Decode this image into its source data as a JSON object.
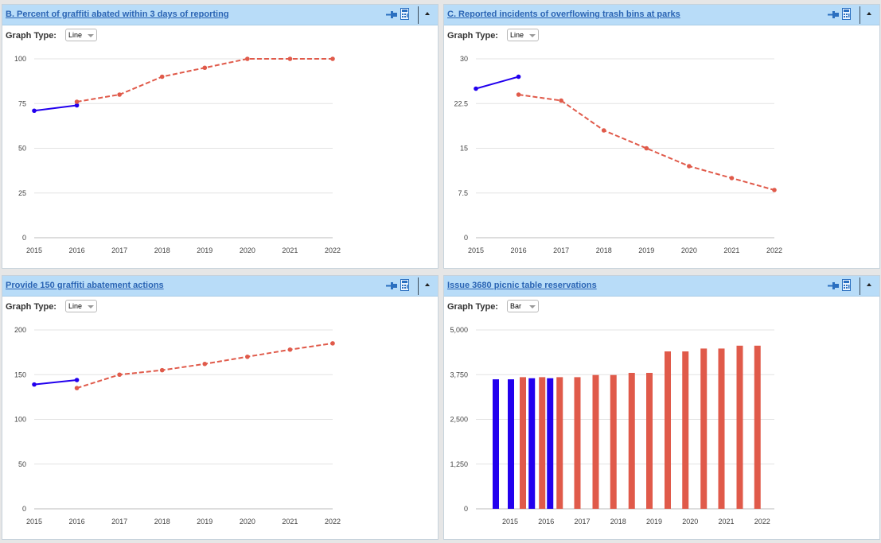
{
  "panels": [
    {
      "title": "B. Percent of graffiti abated within 3 days of reporting",
      "graph_type_label": "Graph Type:",
      "graph_type": "Line"
    },
    {
      "title": "C. Reported incidents of overflowing trash bins at parks",
      "graph_type_label": "Graph Type:",
      "graph_type": "Line"
    },
    {
      "title": "Provide 150 graffiti abatement actions",
      "graph_type_label": "Graph Type:",
      "graph_type": "Line"
    },
    {
      "title": "Issue 3680 picnic table reservations",
      "graph_type_label": "Graph Type:",
      "graph_type": "Bar"
    }
  ],
  "icons": [
    "pin-icon",
    "calculator-icon",
    "collapse-icon"
  ],
  "colors": {
    "actual": "#2200ee",
    "target": "#e05a4a",
    "header": "#b8dcf8",
    "title": "#2a64b4"
  },
  "chart_data": [
    {
      "type": "line",
      "title": "B. Percent of graffiti abated within 3 days of reporting",
      "x": [
        "2015",
        "2016",
        "2017",
        "2018",
        "2019",
        "2020",
        "2021",
        "2022"
      ],
      "ylim": [
        0,
        100
      ],
      "yticks": [
        "0",
        "25",
        "50",
        "75",
        "100"
      ],
      "series": [
        {
          "style": "solid",
          "color": "#2200ee",
          "points": [
            [
              "2015",
              71
            ],
            [
              "2016",
              74
            ]
          ]
        },
        {
          "style": "dashed",
          "color": "#e05a4a",
          "points": [
            [
              "2016",
              76
            ],
            [
              "2017",
              80
            ],
            [
              "2018",
              90
            ],
            [
              "2019",
              95
            ],
            [
              "2020",
              100
            ],
            [
              "2021",
              100
            ],
            [
              "2022",
              100
            ]
          ]
        }
      ],
      "grid": true
    },
    {
      "type": "line",
      "title": "C. Reported incidents of overflowing trash bins at parks",
      "x": [
        "2015",
        "2016",
        "2017",
        "2018",
        "2019",
        "2020",
        "2021",
        "2022"
      ],
      "ylim": [
        0,
        30
      ],
      "yticks": [
        "0",
        "7.5",
        "15",
        "22.5",
        "30"
      ],
      "series": [
        {
          "style": "solid",
          "color": "#2200ee",
          "points": [
            [
              "2015",
              25
            ],
            [
              "2016",
              27
            ]
          ]
        },
        {
          "style": "dashed",
          "color": "#e05a4a",
          "points": [
            [
              "2016",
              24
            ],
            [
              "2017",
              23
            ],
            [
              "2018",
              18
            ],
            [
              "2019",
              15
            ],
            [
              "2020",
              12
            ],
            [
              "2021",
              10
            ],
            [
              "2022",
              8
            ]
          ]
        }
      ],
      "grid": true
    },
    {
      "type": "line",
      "title": "Provide 150 graffiti abatement actions",
      "x": [
        "2015",
        "2016",
        "2017",
        "2018",
        "2019",
        "2020",
        "2021",
        "2022"
      ],
      "ylim": [
        0,
        200
      ],
      "yticks": [
        "0",
        "50",
        "100",
        "150",
        "200"
      ],
      "series": [
        {
          "style": "solid",
          "color": "#2200ee",
          "points": [
            [
              "2015",
              139
            ],
            [
              "2016",
              144
            ]
          ]
        },
        {
          "style": "dashed",
          "color": "#e05a4a",
          "points": [
            [
              "2016",
              135
            ],
            [
              "2017",
              150
            ],
            [
              "2018",
              155
            ],
            [
              "2019",
              162
            ],
            [
              "2020",
              170
            ],
            [
              "2021",
              178
            ],
            [
              "2022",
              185
            ]
          ]
        }
      ],
      "grid": true
    },
    {
      "type": "bar",
      "title": "Issue 3680 picnic table reservations",
      "categories": [
        "2015",
        "2016",
        "2017",
        "2018",
        "2019",
        "2020",
        "2021",
        "2022"
      ],
      "ylim": [
        0,
        5000
      ],
      "yticks": [
        "0",
        "1,250",
        "2,500",
        "3,750",
        "5,000"
      ],
      "bars": [
        {
          "year": "2015",
          "slot": 0,
          "value": 3620,
          "color": "#2200ee"
        },
        {
          "year": "2015",
          "slot": 1,
          "value": 3620,
          "color": "#2200ee"
        },
        {
          "year": "2015",
          "slot": 2,
          "value": 3680,
          "color": "#e05a4a"
        },
        {
          "year": "2016",
          "slot": 0,
          "value": 3650,
          "color": "#2200ee"
        },
        {
          "year": "2016",
          "slot": 1,
          "value": 3680,
          "color": "#e05a4a"
        },
        {
          "year": "2016",
          "slot": 2,
          "value": 3650,
          "color": "#2200ee"
        },
        {
          "year": "2016",
          "slot": 3,
          "value": 3680,
          "color": "#e05a4a"
        },
        {
          "year": "2017",
          "slot": 0,
          "value": 3680,
          "color": "#e05a4a"
        },
        {
          "year": "2017",
          "slot": 1,
          "value": 3740,
          "color": "#e05a4a"
        },
        {
          "year": "2018",
          "slot": 0,
          "value": 3740,
          "color": "#e05a4a"
        },
        {
          "year": "2018",
          "slot": 1,
          "value": 3800,
          "color": "#e05a4a"
        },
        {
          "year": "2019",
          "slot": 0,
          "value": 3800,
          "color": "#e05a4a"
        },
        {
          "year": "2019",
          "slot": 1,
          "value": 4400,
          "color": "#e05a4a"
        },
        {
          "year": "2020",
          "slot": 0,
          "value": 4400,
          "color": "#e05a4a"
        },
        {
          "year": "2020",
          "slot": 1,
          "value": 4480,
          "color": "#e05a4a"
        },
        {
          "year": "2021",
          "slot": 0,
          "value": 4480,
          "color": "#e05a4a"
        },
        {
          "year": "2021",
          "slot": 1,
          "value": 4560,
          "color": "#e05a4a"
        },
        {
          "year": "2022",
          "slot": 0,
          "value": 4560,
          "color": "#e05a4a"
        }
      ],
      "grid": true
    }
  ]
}
